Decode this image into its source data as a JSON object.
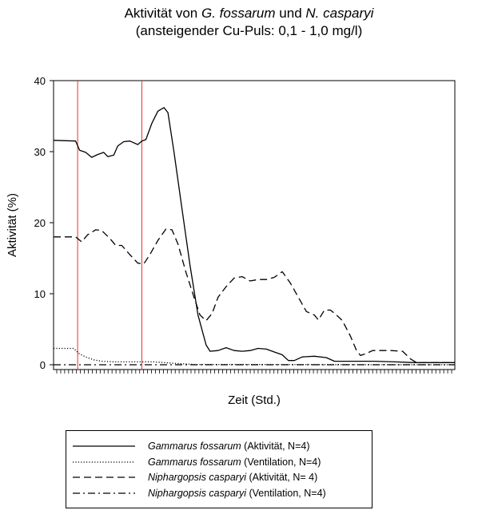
{
  "chart_data": {
    "type": "line",
    "title_parts": [
      "Aktivität von ",
      "G. fossarum",
      " und ",
      "N. casparyi"
    ],
    "subtitle": "(ansteigender Cu-Puls: 0,1 - 1,0 mg/l)",
    "xlabel": "Zeit (Std.)",
    "ylabel": "Aktivität (%)",
    "ylim": [
      0,
      40
    ],
    "yticks": [
      "0",
      "10",
      "20",
      "30",
      "40"
    ],
    "xlim": [
      0,
      100
    ],
    "vlines": [
      6,
      22
    ],
    "vline_color": "#e8322c",
    "legend_position": "bottom",
    "series": [
      {
        "name_species": "Gammarus fossarum",
        "name_detail": " (Aktivität, N=4)",
        "dash": "solid",
        "points": [
          [
            0,
            31.6
          ],
          [
            5.5,
            31.5
          ],
          [
            6.5,
            30.2
          ],
          [
            8,
            29.9
          ],
          [
            9.5,
            29.2
          ],
          [
            11,
            29.6
          ],
          [
            12.5,
            29.9
          ],
          [
            13.5,
            29.3
          ],
          [
            15,
            29.5
          ],
          [
            16,
            30.8
          ],
          [
            17.5,
            31.4
          ],
          [
            19,
            31.5
          ],
          [
            21,
            31
          ],
          [
            22,
            31.5
          ],
          [
            23,
            31.7
          ],
          [
            24.5,
            34
          ],
          [
            26,
            35.7
          ],
          [
            27.5,
            36.2
          ],
          [
            28.5,
            35.5
          ],
          [
            30,
            30
          ],
          [
            32,
            22
          ],
          [
            34,
            14
          ],
          [
            36,
            7
          ],
          [
            38,
            2.8
          ],
          [
            39,
            1.9
          ],
          [
            41,
            2.0
          ],
          [
            43,
            2.4
          ],
          [
            45,
            2.0
          ],
          [
            47,
            1.9
          ],
          [
            49,
            2.0
          ],
          [
            51,
            2.3
          ],
          [
            53,
            2.2
          ],
          [
            55,
            1.8
          ],
          [
            57,
            1.4
          ],
          [
            58.5,
            0.6
          ],
          [
            60,
            0.6
          ],
          [
            62,
            1.1
          ],
          [
            65,
            1.2
          ],
          [
            68,
            1.0
          ],
          [
            70,
            0.5
          ],
          [
            73,
            0.5
          ],
          [
            80,
            0.5
          ],
          [
            85,
            0.4
          ],
          [
            90,
            0.3
          ],
          [
            100,
            0.3
          ]
        ]
      },
      {
        "name_species": "Gammarus fossarum",
        "name_detail": " (Ventilation, N=4)",
        "dash": "dotted",
        "points": [
          [
            0,
            2.3
          ],
          [
            5,
            2.3
          ],
          [
            6.5,
            1.5
          ],
          [
            8,
            1.1
          ],
          [
            10,
            0.7
          ],
          [
            12,
            0.5
          ],
          [
            15,
            0.4
          ],
          [
            20,
            0.4
          ],
          [
            25,
            0.4
          ],
          [
            30,
            0.2
          ],
          [
            35,
            0.05
          ],
          [
            100,
            0.0
          ]
        ]
      },
      {
        "name_species": "Niphargopsis casparyi",
        "name_detail": " (Aktivität, N= 4)",
        "dash": "dashed",
        "points": [
          [
            0,
            18
          ],
          [
            5.5,
            18
          ],
          [
            7,
            17.3
          ],
          [
            8.5,
            18.3
          ],
          [
            10.5,
            19
          ],
          [
            12,
            18.9
          ],
          [
            14,
            17.8
          ],
          [
            15.5,
            16.8
          ],
          [
            17,
            16.8
          ],
          [
            19,
            15.5
          ],
          [
            21,
            14.3
          ],
          [
            22.5,
            14.2
          ],
          [
            24,
            15.5
          ],
          [
            26,
            17.5
          ],
          [
            28,
            19.1
          ],
          [
            29.5,
            19.0
          ],
          [
            31,
            17
          ],
          [
            33,
            13
          ],
          [
            35,
            9.5
          ],
          [
            36.5,
            7
          ],
          [
            38,
            6.2
          ],
          [
            39.5,
            7.2
          ],
          [
            41,
            9.5
          ],
          [
            43,
            11
          ],
          [
            45,
            12.2
          ],
          [
            47,
            12.4
          ],
          [
            49,
            11.8
          ],
          [
            51,
            12.0
          ],
          [
            53,
            12.0
          ],
          [
            55,
            12.3
          ],
          [
            57,
            13.1
          ],
          [
            59,
            11.5
          ],
          [
            61,
            9.5
          ],
          [
            63,
            7.5
          ],
          [
            65,
            7.0
          ],
          [
            66,
            6.3
          ],
          [
            67.5,
            7.7
          ],
          [
            69,
            7.7
          ],
          [
            70.5,
            7.0
          ],
          [
            72,
            6.2
          ],
          [
            74,
            4.0
          ],
          [
            75.5,
            2.0
          ],
          [
            76.5,
            1.3
          ],
          [
            78,
            1.6
          ],
          [
            79.5,
            2.0
          ],
          [
            84,
            2.0
          ],
          [
            87,
            1.9
          ],
          [
            89,
            0.8
          ],
          [
            90.5,
            0.3
          ],
          [
            100,
            0.3
          ]
        ]
      },
      {
        "name_species": "Niphargopsis casparyi",
        "name_detail": " (Ventilation, N=4)",
        "dash": "dashdot",
        "points": [
          [
            0,
            0.0
          ],
          [
            100,
            0.0
          ]
        ]
      }
    ]
  }
}
